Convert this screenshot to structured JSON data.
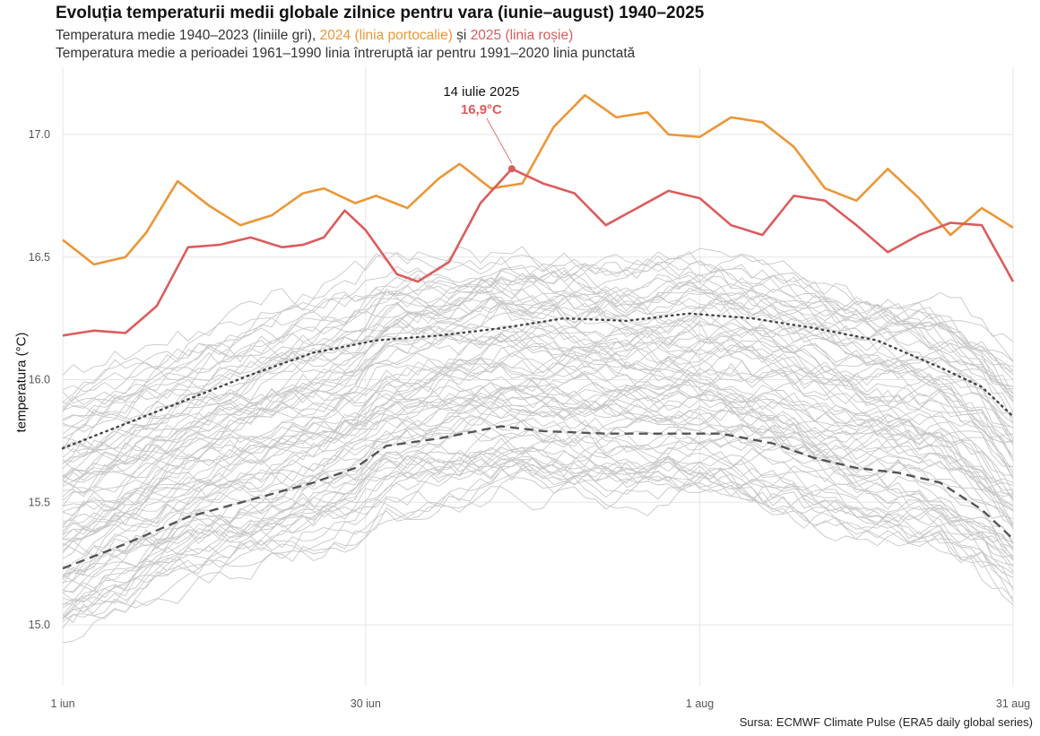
{
  "chart_data": {
    "type": "line",
    "title": "Evoluția temperaturii medii globale zilnice pentru vara (iunie–august) 1940–2025",
    "subtitle": {
      "line1_prefix": "Temperatura medie 1940–2023 (liniile gri), ",
      "line1_2024": "2024 (linia portocalie)",
      "line1_mid": " și ",
      "line1_2025": "2025 (linia roșie)",
      "line2": "Temperatura medie a perioadei 1961–1990 linia întreruptă iar pentru 1991–2020 linia punctată"
    },
    "ylabel": "temperatura (°C)",
    "source": "Sursa: ECMWF Climate Pulse (ERA5 daily global series)",
    "x_ticks": [
      {
        "day": 0,
        "label": "1 iun"
      },
      {
        "day": 29,
        "label": "30 iun"
      },
      {
        "day": 61,
        "label": "1 aug"
      },
      {
        "day": 91,
        "label": "31 aug"
      }
    ],
    "ylim": [
      14.8,
      17.25
    ],
    "y_ticks": [
      15.0,
      15.5,
      16.0,
      16.5,
      17.0
    ],
    "y_tick_labels": [
      "15.0",
      "15.5",
      "16.0",
      "16.5",
      "17.0"
    ],
    "grid": true,
    "colors": {
      "y2024": "#ec9637",
      "y2025": "#dc5c5c",
      "historical": "#c8c8c8",
      "mean_1961_1990": "#555555",
      "mean_1991_2020": "#444444"
    },
    "annotation": {
      "date": "14 iulie 2025",
      "value_label": "16,9°C",
      "day": 43,
      "value": 16.86
    },
    "series": [
      {
        "key": "y2024",
        "name": "2024",
        "x": [
          0,
          3,
          6,
          8,
          11,
          14,
          17,
          20,
          23,
          25,
          28,
          30,
          33,
          36,
          38,
          41,
          44,
          47,
          50,
          53,
          56,
          58,
          61,
          64,
          67,
          70,
          73,
          76,
          79,
          82,
          85,
          88,
          91
        ],
        "values": [
          16.57,
          16.47,
          16.5,
          16.6,
          16.81,
          16.71,
          16.63,
          16.67,
          16.76,
          16.78,
          16.72,
          16.75,
          16.7,
          16.82,
          16.88,
          16.78,
          16.8,
          17.03,
          17.16,
          17.07,
          17.09,
          17.0,
          16.99,
          17.07,
          17.05,
          16.95,
          16.78,
          16.73,
          16.86,
          16.74,
          16.59,
          16.7,
          16.62
        ]
      },
      {
        "key": "y2025",
        "name": "2025",
        "x": [
          0,
          3,
          6,
          9,
          12,
          15,
          18,
          21,
          23,
          25,
          27,
          29,
          32,
          34,
          37,
          40,
          43,
          46,
          49,
          52,
          55,
          58,
          61,
          64,
          67,
          70,
          73,
          76,
          79,
          82,
          85,
          88,
          91
        ],
        "values": [
          16.18,
          16.2,
          16.19,
          16.3,
          16.54,
          16.55,
          16.58,
          16.54,
          16.55,
          16.58,
          16.69,
          16.61,
          16.43,
          16.4,
          16.48,
          16.72,
          16.86,
          16.8,
          16.76,
          16.63,
          16.7,
          16.77,
          16.74,
          16.63,
          16.59,
          16.75,
          16.73,
          16.63,
          16.52,
          16.59,
          16.64,
          16.63,
          16.4
        ]
      },
      {
        "key": "mean_1961_1990",
        "name": "1961–1990",
        "x": [
          0,
          6,
          12,
          18,
          24,
          28,
          31,
          36,
          42,
          46,
          52,
          58,
          63,
          68,
          72,
          76,
          80,
          84,
          88,
          91
        ],
        "values": [
          15.23,
          15.33,
          15.44,
          15.51,
          15.58,
          15.64,
          15.73,
          15.76,
          15.81,
          15.79,
          15.78,
          15.78,
          15.78,
          15.74,
          15.68,
          15.64,
          15.62,
          15.58,
          15.47,
          15.35
        ]
      },
      {
        "key": "mean_1991_2020",
        "name": "1991–2020",
        "x": [
          0,
          6,
          12,
          18,
          24,
          30,
          36,
          42,
          48,
          54,
          60,
          66,
          72,
          78,
          84,
          88,
          91
        ],
        "values": [
          15.72,
          15.82,
          15.92,
          16.02,
          16.11,
          16.16,
          16.18,
          16.21,
          16.25,
          16.24,
          16.27,
          16.25,
          16.21,
          16.16,
          16.05,
          15.97,
          15.85
        ]
      }
    ]
  }
}
